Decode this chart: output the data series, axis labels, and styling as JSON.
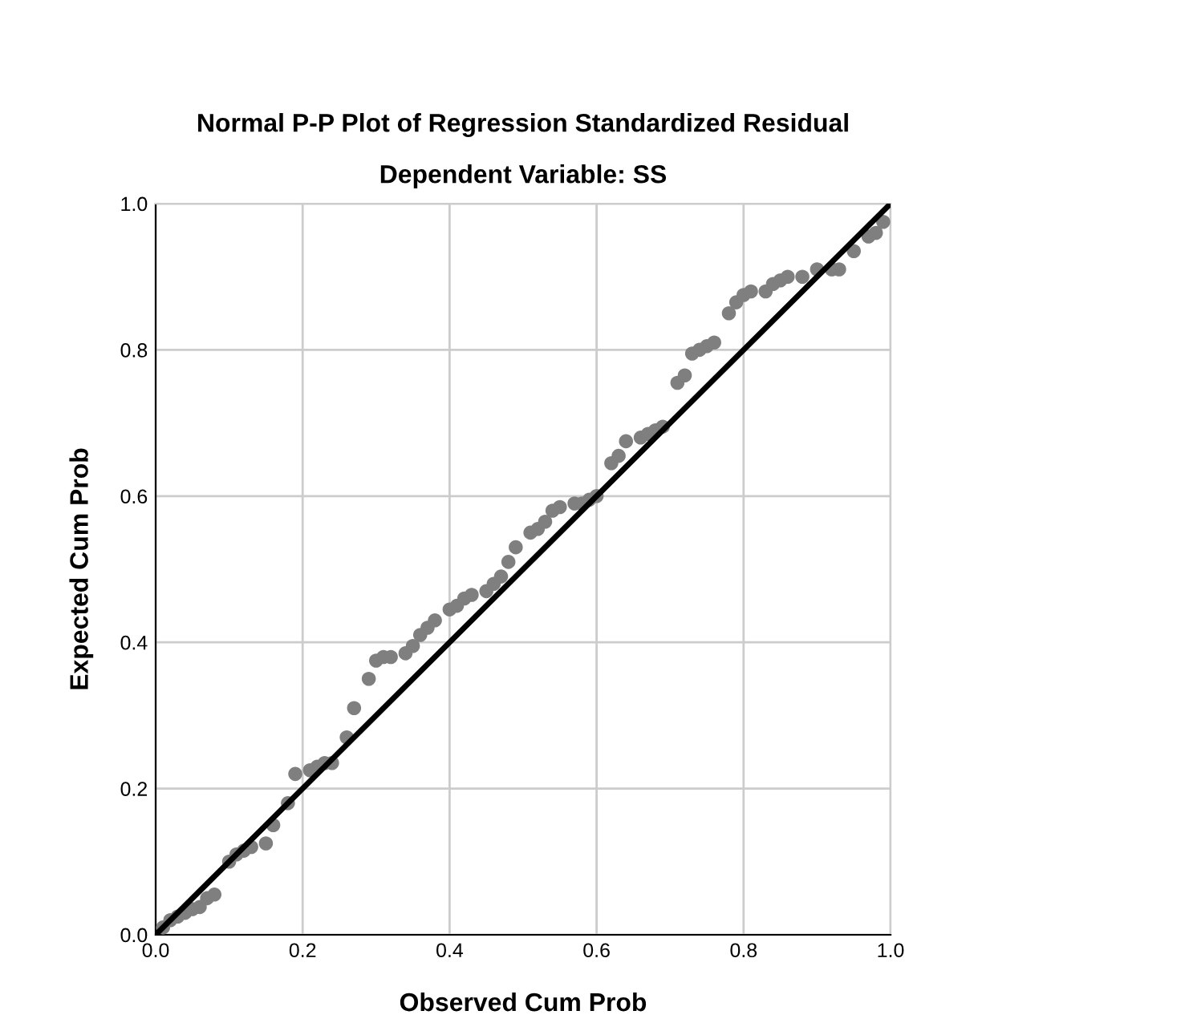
{
  "chart_data": {
    "type": "scatter",
    "title": "Normal P-P Plot of Regression Standardized Residual",
    "subtitle": "Dependent Variable: SS",
    "xlabel": "Observed Cum Prob",
    "ylabel": "Expected Cum Prob",
    "xlim": [
      0,
      1
    ],
    "ylim": [
      0,
      1
    ],
    "xticks": [
      {
        "value": 0,
        "label": "0.0"
      },
      {
        "value": 0.2,
        "label": "0.2"
      },
      {
        "value": 0.4,
        "label": "0.4"
      },
      {
        "value": 0.6,
        "label": "0.6"
      },
      {
        "value": 0.8,
        "label": "0.8"
      },
      {
        "value": 1,
        "label": "1.0"
      }
    ],
    "yticks": [
      {
        "value": 0,
        "label": "0.0"
      },
      {
        "value": 0.2,
        "label": "0.2"
      },
      {
        "value": 0.4,
        "label": "0.4"
      },
      {
        "value": 0.6,
        "label": "0.6"
      },
      {
        "value": 0.8,
        "label": "0.8"
      },
      {
        "value": 1,
        "label": "1.0"
      }
    ],
    "grid": true,
    "series": [
      {
        "marker": "circle",
        "color": "#7f7f7f",
        "x": [
          0.01,
          0.02,
          0.03,
          0.04,
          0.05,
          0.06,
          0.07,
          0.08,
          0.1,
          0.11,
          0.12,
          0.13,
          0.15,
          0.16,
          0.18,
          0.19,
          0.21,
          0.22,
          0.23,
          0.24,
          0.26,
          0.27,
          0.29,
          0.3,
          0.31,
          0.32,
          0.34,
          0.35,
          0.36,
          0.37,
          0.38,
          0.4,
          0.41,
          0.42,
          0.43,
          0.45,
          0.46,
          0.47,
          0.48,
          0.49,
          0.51,
          0.52,
          0.53,
          0.54,
          0.55,
          0.57,
          0.58,
          0.59,
          0.6,
          0.62,
          0.63,
          0.64,
          0.66,
          0.67,
          0.68,
          0.69,
          0.71,
          0.72,
          0.73,
          0.74,
          0.75,
          0.76,
          0.78,
          0.79,
          0.8,
          0.81,
          0.83,
          0.84,
          0.85,
          0.86,
          0.88,
          0.9,
          0.92,
          0.93,
          0.95,
          0.97,
          0.98,
          0.99
        ],
        "values": [
          0.01,
          0.02,
          0.025,
          0.03,
          0.035,
          0.038,
          0.05,
          0.055,
          0.1,
          0.11,
          0.115,
          0.12,
          0.125,
          0.15,
          0.18,
          0.22,
          0.225,
          0.23,
          0.235,
          0.235,
          0.27,
          0.31,
          0.35,
          0.375,
          0.38,
          0.38,
          0.385,
          0.395,
          0.41,
          0.42,
          0.43,
          0.445,
          0.45,
          0.46,
          0.465,
          0.47,
          0.48,
          0.49,
          0.51,
          0.53,
          0.55,
          0.555,
          0.565,
          0.58,
          0.585,
          0.59,
          0.59,
          0.595,
          0.6,
          0.645,
          0.655,
          0.675,
          0.68,
          0.685,
          0.69,
          0.695,
          0.755,
          0.765,
          0.795,
          0.8,
          0.805,
          0.81,
          0.85,
          0.865,
          0.875,
          0.88,
          0.88,
          0.89,
          0.895,
          0.9,
          0.9,
          0.91,
          0.91,
          0.91,
          0.935,
          0.955,
          0.96,
          0.975
        ]
      },
      {
        "type": "line",
        "color": "#000000",
        "marker": "none",
        "x": [
          0,
          1
        ],
        "values": [
          0,
          1
        ]
      }
    ]
  }
}
